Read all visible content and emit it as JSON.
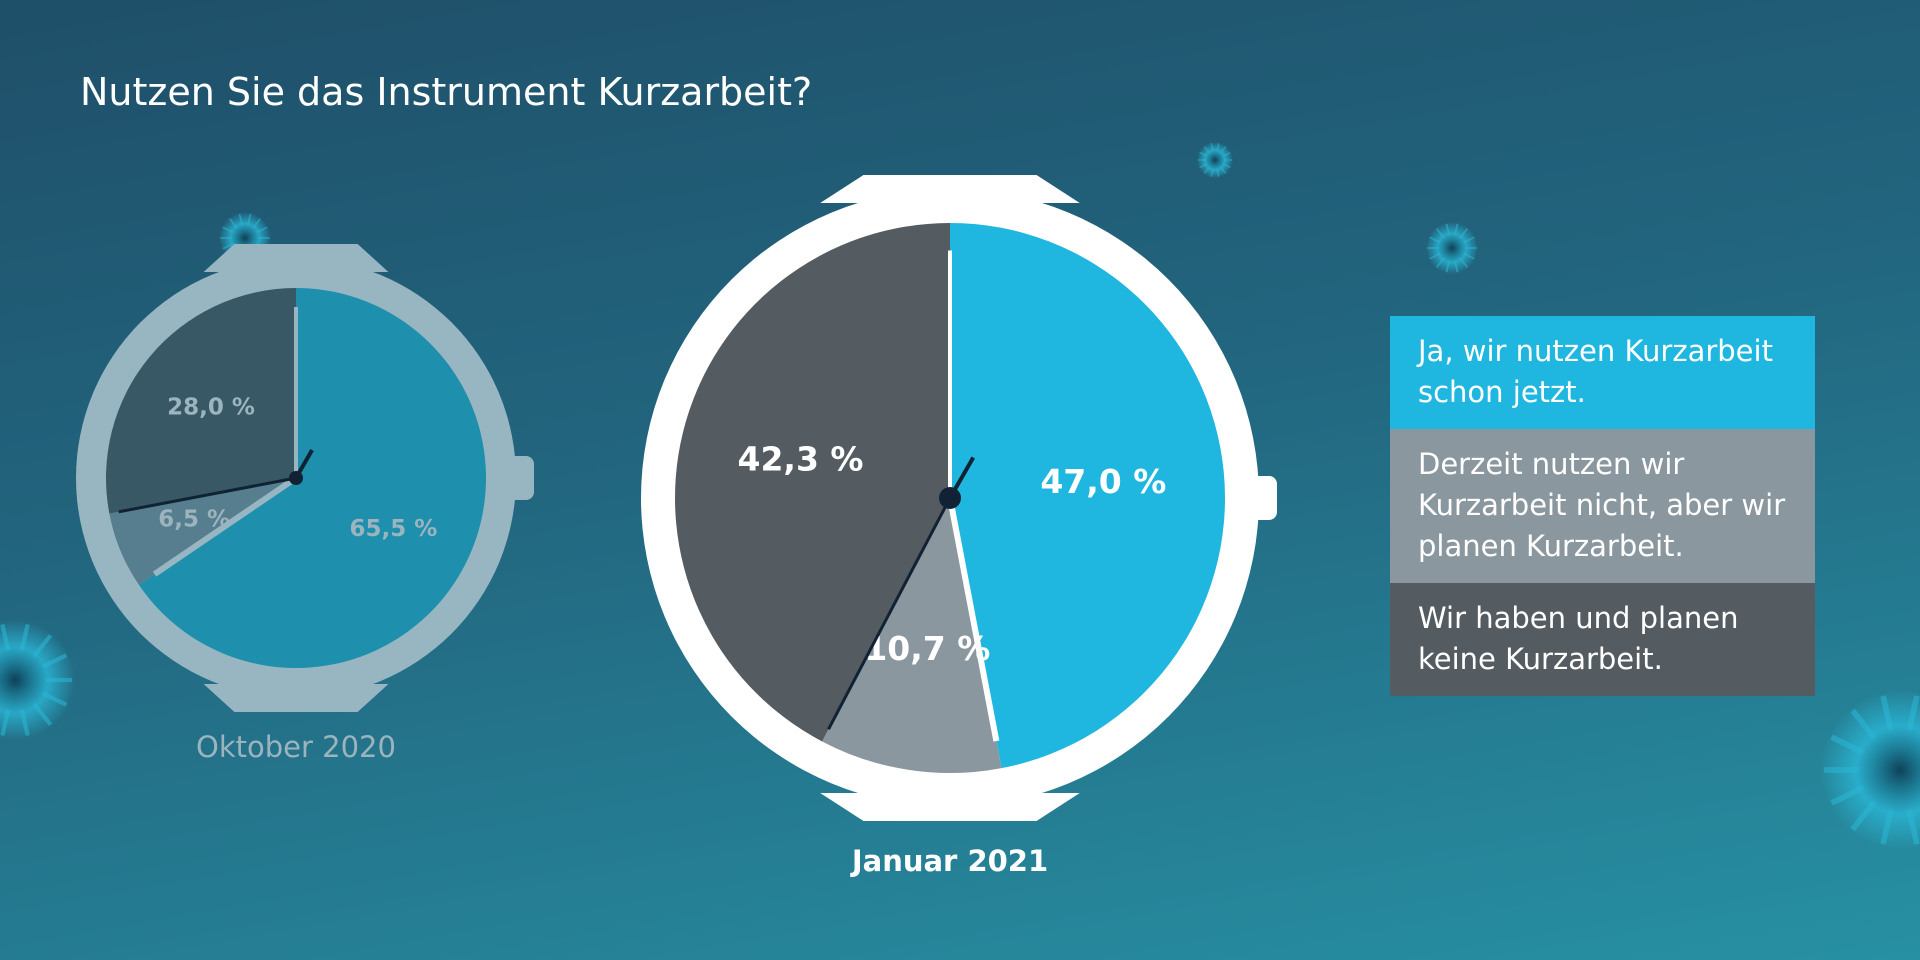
{
  "title": "Nutzen Sie das Instrument Kurzarbeit?",
  "colors": {
    "yes": "#1fb7e0",
    "planned": "#8b979e",
    "no": "#555c61",
    "yes_faded": "#1e8fac",
    "planned_faded": "#567e8e",
    "no_faded": "#385866",
    "ring_main": "#ffffff",
    "ring_faded": "#97b6c2",
    "label_faded": "#9bb4be",
    "hand": "#102234"
  },
  "legend": [
    {
      "key": "yes",
      "label": "Ja, wir nutzen Kurzarbeit schon jetzt."
    },
    {
      "key": "planned",
      "label": "Derzeit nutzen wir Kurzarbeit nicht, aber wir planen Kurzarbeit."
    },
    {
      "key": "no",
      "label": "Wir haben und planen keine Kurzarbeit."
    }
  ],
  "chart_data": [
    {
      "type": "pie",
      "title": "Oktober 2020",
      "categories": [
        "Ja, wir nutzen Kurzarbeit schon jetzt.",
        "Derzeit nutzen wir Kurzarbeit nicht, aber wir planen Kurzarbeit.",
        "Wir haben und planen keine Kurzarbeit."
      ],
      "values": [
        65.5,
        6.5,
        28.0
      ],
      "labels": [
        "65,5 %",
        "6,5 %",
        "28,0 %"
      ]
    },
    {
      "type": "pie",
      "title": "Januar 2021",
      "categories": [
        "Ja, wir nutzen Kurzarbeit schon jetzt.",
        "Derzeit nutzen wir Kurzarbeit nicht, aber wir planen Kurzarbeit.",
        "Wir haben und planen keine Kurzarbeit."
      ],
      "values": [
        47.0,
        10.7,
        42.3
      ],
      "labels": [
        "47,0 %",
        "10,7 %",
        "42,3 %"
      ]
    }
  ]
}
